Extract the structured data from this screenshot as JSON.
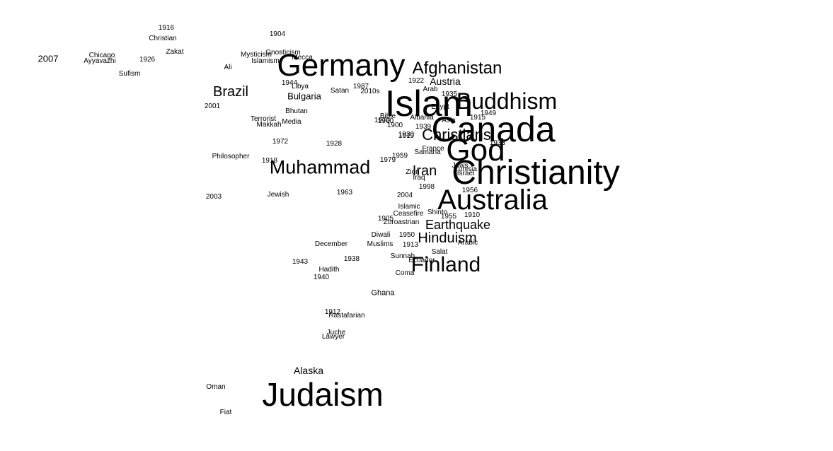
{
  "text_color": "#000000",
  "background_color": "#ffffff",
  "words": [
    {
      "id": "germany",
      "text": "Germany"
    },
    {
      "id": "islam",
      "text": "Islam"
    },
    {
      "id": "canada",
      "text": "Canada"
    },
    {
      "id": "christianity",
      "text": "Christianity"
    },
    {
      "id": "australia",
      "text": "Australia"
    },
    {
      "id": "judaism",
      "text": "Judaism"
    },
    {
      "id": "buddhism",
      "text": "Buddhism"
    },
    {
      "id": "muhammad",
      "text": "Muhammad"
    },
    {
      "id": "finland",
      "text": "Finland"
    },
    {
      "id": "god",
      "text": "God"
    },
    {
      "id": "afghanistan",
      "text": "Afghanistan"
    },
    {
      "id": "brazil",
      "text": "Brazil"
    },
    {
      "id": "christians",
      "text": "Christians"
    },
    {
      "id": "hinduism",
      "text": "Hinduism"
    },
    {
      "id": "earthquake",
      "text": "Earthquake"
    },
    {
      "id": "iran",
      "text": "Iran"
    },
    {
      "id": "austria",
      "text": "Austria"
    },
    {
      "id": "alaska",
      "text": "Alaska"
    },
    {
      "id": "bulgaria",
      "text": "Bulgaria"
    },
    {
      "id": "y2007",
      "text": "2007"
    },
    {
      "id": "y1916",
      "text": "1916"
    },
    {
      "id": "christian",
      "text": "Christian"
    },
    {
      "id": "zakat",
      "text": "Zakat"
    },
    {
      "id": "chicago",
      "text": "Chicago"
    },
    {
      "id": "ayyavazhi",
      "text": "Ayyavazhi"
    },
    {
      "id": "y1926",
      "text": "1926"
    },
    {
      "id": "sufism",
      "text": "Sufism"
    },
    {
      "id": "y1904",
      "text": "1904"
    },
    {
      "id": "mysticism",
      "text": "Mysticism"
    },
    {
      "id": "gnosticism",
      "text": "Gnosticism"
    },
    {
      "id": "islamism",
      "text": "Islamism"
    },
    {
      "id": "mecca",
      "text": "Mecca"
    },
    {
      "id": "ali",
      "text": "Ali"
    },
    {
      "id": "y1944",
      "text": "1944"
    },
    {
      "id": "libya",
      "text": "Libya"
    },
    {
      "id": "satan",
      "text": "Satan"
    },
    {
      "id": "y1987",
      "text": "1987"
    },
    {
      "id": "y2010s",
      "text": "2010s"
    },
    {
      "id": "y1922",
      "text": "1922"
    },
    {
      "id": "arab",
      "text": "Arab"
    },
    {
      "id": "y2001",
      "text": "2001"
    },
    {
      "id": "bhutan",
      "text": "Bhutan"
    },
    {
      "id": "terrorist",
      "text": "Terrorist"
    },
    {
      "id": "makkah",
      "text": "Makkah"
    },
    {
      "id": "media",
      "text": "Media"
    },
    {
      "id": "y1972",
      "text": "1972"
    },
    {
      "id": "y1928",
      "text": "1928"
    },
    {
      "id": "philosopher",
      "text": "Philosopher"
    },
    {
      "id": "y1918",
      "text": "1918"
    },
    {
      "id": "y1959",
      "text": "1959"
    },
    {
      "id": "y1979",
      "text": "1979"
    },
    {
      "id": "y2003",
      "text": "2003"
    },
    {
      "id": "jewish",
      "text": "Jewish"
    },
    {
      "id": "y1963",
      "text": "1963"
    },
    {
      "id": "y1900",
      "text": "1900"
    },
    {
      "id": "y1949",
      "text": "1949"
    },
    {
      "id": "y1933",
      "text": "1933"
    },
    {
      "id": "y1915",
      "text": "1915"
    },
    {
      "id": "y1930",
      "text": "1930"
    },
    {
      "id": "diwali",
      "text": "Diwali"
    },
    {
      "id": "muslims",
      "text": "Muslims"
    },
    {
      "id": "december",
      "text": "December"
    },
    {
      "id": "ceasefire",
      "text": "Ceasefire"
    },
    {
      "id": "zoroastrian",
      "text": "Zoroastrian"
    },
    {
      "id": "shinto",
      "text": "Shinto"
    },
    {
      "id": "y1910",
      "text": "1910"
    },
    {
      "id": "y1913",
      "text": "1913"
    },
    {
      "id": "arabic",
      "text": "Arabic"
    },
    {
      "id": "sunnah",
      "text": "Sunnah"
    },
    {
      "id": "salat",
      "text": "Salat"
    },
    {
      "id": "coma",
      "text": "Coma"
    },
    {
      "id": "y1943",
      "text": "1943"
    },
    {
      "id": "y1938",
      "text": "1938"
    },
    {
      "id": "hadith",
      "text": "Hadith"
    },
    {
      "id": "y1940",
      "text": "1940"
    },
    {
      "id": "ghana",
      "text": "Ghana"
    },
    {
      "id": "y1912",
      "text": "1912"
    },
    {
      "id": "rastafarian",
      "text": "Rastafarian"
    },
    {
      "id": "juche",
      "text": "Juche"
    },
    {
      "id": "lawyer",
      "text": "Lawyer"
    },
    {
      "id": "oman",
      "text": "Oman"
    },
    {
      "id": "fiat",
      "text": "Fiat"
    },
    {
      "id": "samaria",
      "text": "Samaria"
    },
    {
      "id": "jews",
      "text": "Jews"
    },
    {
      "id": "israel",
      "text": "Israel"
    },
    {
      "id": "iraq",
      "text": "Iraq"
    },
    {
      "id": "islamic",
      "text": "Islamic"
    },
    {
      "id": "ecuador",
      "text": "Ecuador"
    },
    {
      "id": "albania",
      "text": "Albania"
    },
    {
      "id": "y1905",
      "text": "1905"
    },
    {
      "id": "y1955",
      "text": "1955"
    },
    {
      "id": "zion",
      "text": "Zion"
    },
    {
      "id": "tunisia",
      "text": "Tunisia"
    },
    {
      "id": "asia",
      "text": "Asia"
    },
    {
      "id": "egypt",
      "text": "Egypt"
    },
    {
      "id": "france",
      "text": "France"
    },
    {
      "id": "y1935",
      "text": "1935"
    },
    {
      "id": "y1939",
      "text": "1939"
    },
    {
      "id": "y1998",
      "text": "1998"
    },
    {
      "id": "y1956",
      "text": "1956"
    },
    {
      "id": "y1960",
      "text": "1960"
    },
    {
      "id": "y1950",
      "text": "1950"
    },
    {
      "id": "y2004",
      "text": "2004"
    },
    {
      "id": "bible",
      "text": "Bible"
    },
    {
      "id": "y1970",
      "text": "1970"
    },
    {
      "id": "y1919",
      "text": "1919"
    }
  ]
}
